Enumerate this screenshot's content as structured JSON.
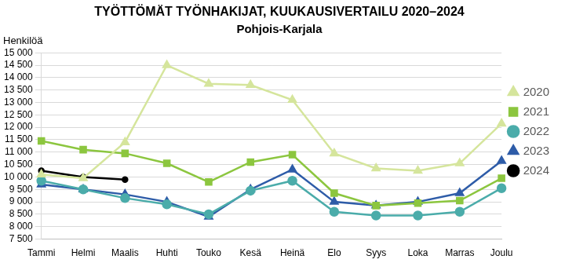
{
  "chart_data": {
    "type": "line",
    "title": "TYÖTTÖMÄT TYÖNHAKIJAT, KUUKAUSIVERTAILU 2020–2024",
    "subtitle": "Pohjois-Karjala",
    "y_label": "Henkilöä",
    "categories": [
      "Tammi",
      "Helmi",
      "Maalis",
      "Huhti",
      "Touko",
      "Kesä",
      "Heinä",
      "Elo",
      "Syys",
      "Loka",
      "Marras",
      "Joulu"
    ],
    "series": [
      {
        "name": "2020",
        "color": "#d5e59c",
        "marker": "triangle",
        "values": [
          10100,
          9950,
          11400,
          14500,
          13750,
          13700,
          13100,
          10950,
          10350,
          10250,
          10550,
          12150
        ]
      },
      {
        "name": "2021",
        "color": "#8cc63f",
        "marker": "square",
        "values": [
          11450,
          11100,
          10950,
          10550,
          9800,
          10600,
          10900,
          9350,
          8850,
          8950,
          9050,
          9950
        ]
      },
      {
        "name": "2022",
        "color": "#4bacaa",
        "marker": "circle",
        "values": [
          9850,
          9500,
          9150,
          8900,
          8500,
          9450,
          9850,
          8600,
          8450,
          8450,
          8600,
          9550
        ]
      },
      {
        "name": "2023",
        "color": "#2e5ca8",
        "marker": "triangle",
        "values": [
          9700,
          9500,
          9300,
          9000,
          8400,
          9500,
          10300,
          9000,
          8850,
          9000,
          9350,
          10650
        ]
      },
      {
        "name": "2024",
        "color": "#000000",
        "marker": "circle",
        "values": [
          10250,
          10000,
          9900,
          null,
          null,
          null,
          null,
          null,
          null,
          null,
          null,
          null
        ]
      }
    ],
    "ylim": [
      7500,
      15000
    ],
    "yticks": [
      {
        "value": 7500,
        "label": "7 500"
      },
      {
        "value": 8000,
        "label": "8 000"
      },
      {
        "value": 8500,
        "label": "8 500"
      },
      {
        "value": 9000,
        "label": "9 000"
      },
      {
        "value": 9500,
        "label": "9 500"
      },
      {
        "value": 10000,
        "label": "10 000"
      },
      {
        "value": 10500,
        "label": "10 500"
      },
      {
        "value": 11000,
        "label": "11 000"
      },
      {
        "value": 11500,
        "label": "11 500"
      },
      {
        "value": 12000,
        "label": "12 000"
      },
      {
        "value": 12500,
        "label": "12 500"
      },
      {
        "value": 13000,
        "label": "13 000"
      },
      {
        "value": 13500,
        "label": "13 500"
      },
      {
        "value": 14000,
        "label": "14 000"
      },
      {
        "value": 14500,
        "label": "14 500"
      },
      {
        "value": 15000,
        "label": "15 000"
      }
    ],
    "grid": true,
    "legend": "right"
  }
}
